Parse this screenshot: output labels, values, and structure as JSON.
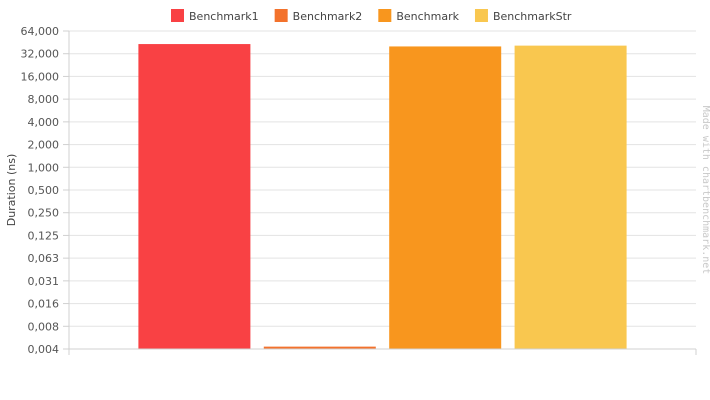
{
  "chart_data": {
    "type": "bar",
    "ylabel": "Duration (ns)",
    "yscale": "log2",
    "ylim": [
      0.004,
      64
    ],
    "y_ticks": [
      "64,000",
      "32,000",
      "16,000",
      "8,000",
      "4,000",
      "2,000",
      "1,000",
      "0,500",
      "0,250",
      "0,125",
      "0,063",
      "0,031",
      "0,016",
      "0,008",
      "0,004"
    ],
    "grid": true,
    "legend_position": "top",
    "series": [
      {
        "name": "Benchmark1",
        "value": 43,
        "color": "#f94144"
      },
      {
        "name": "Benchmark2",
        "value": 0.0043,
        "color": "#f3722c"
      },
      {
        "name": "Benchmark",
        "value": 40,
        "color": "#f8961e"
      },
      {
        "name": "BenchmarkStr",
        "value": 41,
        "color": "#f9c74f"
      }
    ]
  },
  "watermark": "Made with chartbenchmark.net"
}
